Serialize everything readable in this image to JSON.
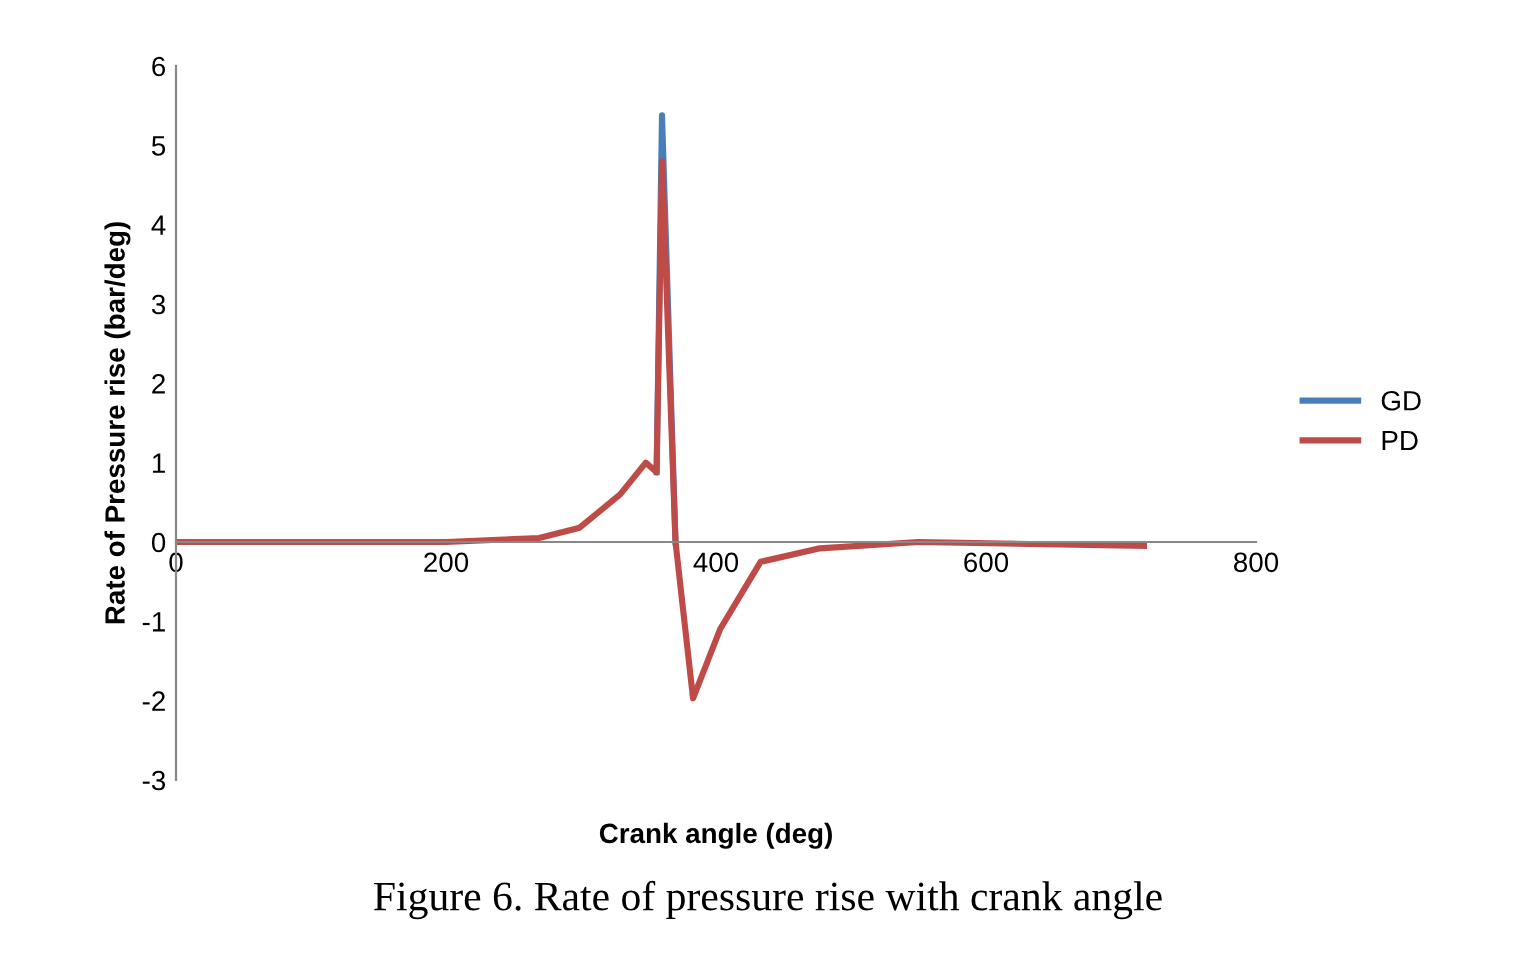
{
  "chart_data": {
    "type": "line",
    "xlabel": "Crank angle (deg)",
    "ylabel": "Rate of Pressure rise (bar/deg)",
    "x": [
      0,
      200,
      269,
      299,
      329,
      348,
      356,
      360,
      370,
      383,
      403,
      433,
      477,
      550,
      717
    ],
    "series": [
      {
        "name": "GD",
        "color": "#4a7ebb",
        "values": [
          null,
          null,
          null,
          null,
          null,
          null,
          0.88,
          5.38,
          0,
          null,
          null,
          null,
          null,
          null,
          null
        ]
      },
      {
        "name": "PD",
        "color": "#be4b48",
        "values": [
          0,
          0,
          0.05,
          0.18,
          0.6,
          1.0,
          0.88,
          4.8,
          0,
          -1.97,
          -1.1,
          -0.25,
          -0.08,
          0,
          -0.05
        ]
      }
    ],
    "xlim": [
      0,
      800
    ],
    "xticks": [
      0,
      200,
      400,
      600,
      800
    ],
    "ylim": [
      -3,
      6
    ],
    "yticks": [
      -3,
      -2,
      -1,
      0,
      1,
      2,
      3,
      4,
      5,
      6
    ],
    "grid": false,
    "legend": "right",
    "marker": "none",
    "line_style": "solid",
    "annotations": [
      "Figure 6. Rate of pressure rise with crank angle"
    ]
  }
}
